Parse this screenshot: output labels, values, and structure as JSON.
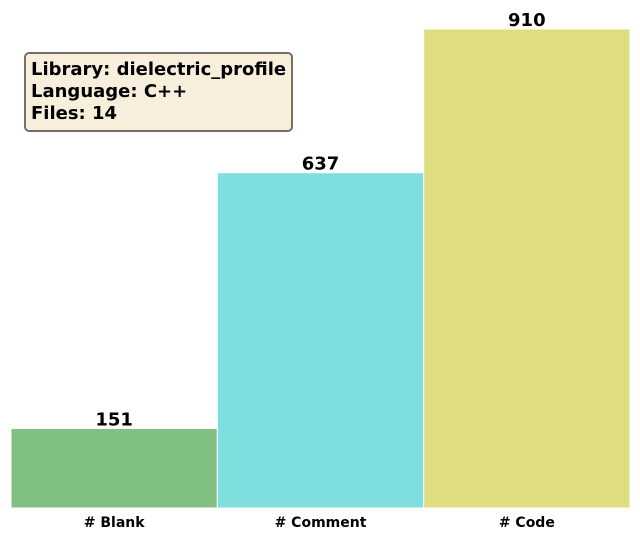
{
  "chart_data": {
    "type": "bar",
    "title": "",
    "xlabel": "",
    "ylabel": "",
    "categories": [
      "# Blank",
      "# Comment",
      "# Code"
    ],
    "values": [
      151,
      637,
      910
    ],
    "colors": [
      "#80c080",
      "#7fdfdf",
      "#dede80"
    ],
    "ylim": [
      0,
      910
    ],
    "grid": false,
    "legend": "none",
    "annotation": {
      "lines": [
        "Library: dielectric_profile",
        "Language: C++",
        "Files: 14"
      ],
      "placement": "top-left",
      "background": "#f7eedb",
      "border": "#747066"
    }
  }
}
